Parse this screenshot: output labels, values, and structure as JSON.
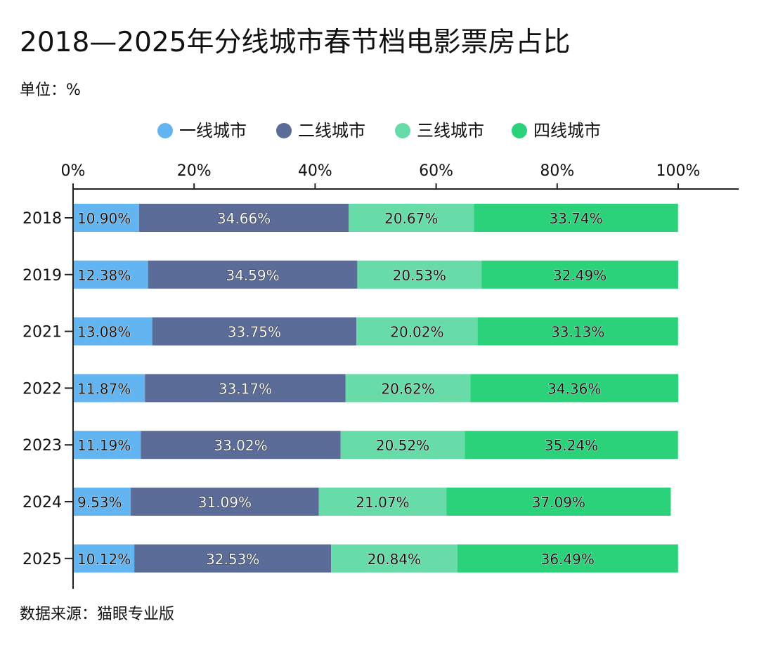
{
  "chart_data": {
    "type": "bar",
    "orientation": "horizontal",
    "stacked": true,
    "title": "2018—2025年分线城市春节档电影票房占比",
    "unit_label": "单位：%",
    "source": "数据来源：猫眼专业版",
    "categories": [
      "2018",
      "2019",
      "2021",
      "2022",
      "2023",
      "2024",
      "2025"
    ],
    "series": [
      {
        "name": "一线城市",
        "color": "#63B5F2",
        "values": [
          10.9,
          12.38,
          13.08,
          11.87,
          11.19,
          9.53,
          10.12
        ],
        "labels": [
          "10.90%",
          "12.38%",
          "13.08%",
          "11.87%",
          "11.19%",
          "9.53%",
          "10.12%"
        ]
      },
      {
        "name": "二线城市",
        "color": "#5A6C97",
        "values": [
          34.66,
          34.59,
          33.75,
          33.17,
          33.02,
          31.09,
          32.53
        ],
        "labels": [
          "34.66%",
          "34.59%",
          "33.75%",
          "33.17%",
          "33.02%",
          "31.09%",
          "32.53%"
        ]
      },
      {
        "name": "三线城市",
        "color": "#67DCA8",
        "values": [
          20.67,
          20.53,
          20.02,
          20.62,
          20.52,
          21.07,
          20.84
        ],
        "labels": [
          "20.67%",
          "20.53%",
          "20.02%",
          "20.62%",
          "20.52%",
          "21.07%",
          "20.84%"
        ]
      },
      {
        "name": "四线城市",
        "color": "#2BD27A",
        "values": [
          33.74,
          32.49,
          33.13,
          34.36,
          35.24,
          37.09,
          36.49
        ],
        "labels": [
          "33.74%",
          "32.49%",
          "33.13%",
          "34.36%",
          "35.24%",
          "37.09%",
          "36.49%"
        ]
      }
    ],
    "x_ticks": [
      "0%",
      "20%",
      "40%",
      "60%",
      "80%",
      "100%"
    ],
    "xlim": [
      0,
      110
    ],
    "grid": false,
    "legend_position": "top"
  }
}
